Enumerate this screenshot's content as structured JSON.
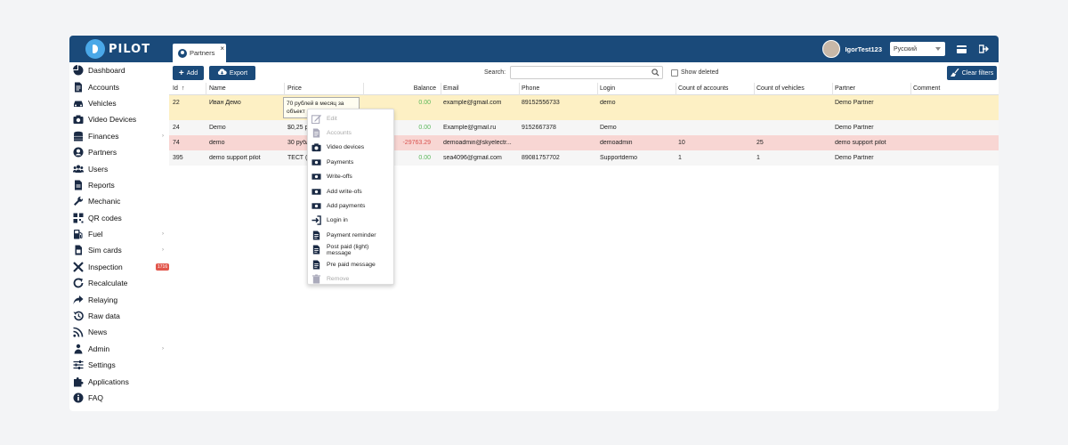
{
  "header": {
    "logo_text": "PILOT",
    "tab_label": "Partners",
    "tab_close": "×",
    "username": "IgorTest123",
    "language": "Русский"
  },
  "sidebar": {
    "items": [
      {
        "label": "Dashboard",
        "icon": "pie-chart-icon",
        "arrow": ""
      },
      {
        "label": "Accounts",
        "icon": "document-icon",
        "arrow": ""
      },
      {
        "label": "Vehicles",
        "icon": "car-icon",
        "arrow": ""
      },
      {
        "label": "Video Devices",
        "icon": "camera-icon",
        "arrow": ""
      },
      {
        "label": "Finances",
        "icon": "coins-icon",
        "arrow": "›"
      },
      {
        "label": "Partners",
        "icon": "user-circle-icon",
        "arrow": ""
      },
      {
        "label": "Users",
        "icon": "users-icon",
        "arrow": ""
      },
      {
        "label": "Reports",
        "icon": "report-icon",
        "arrow": ""
      },
      {
        "label": "Mechanic",
        "icon": "wrench-icon",
        "arrow": ""
      },
      {
        "label": "QR codes",
        "icon": "qr-icon",
        "arrow": ""
      },
      {
        "label": "Fuel",
        "icon": "fuel-icon",
        "arrow": "›"
      },
      {
        "label": "Sim cards",
        "icon": "sim-icon",
        "arrow": "›"
      },
      {
        "label": "Inspection",
        "icon": "tools-icon",
        "arrow": "",
        "badge": "1716"
      },
      {
        "label": "Recalculate",
        "icon": "refresh-icon",
        "arrow": ""
      },
      {
        "label": "Relaying",
        "icon": "share-icon",
        "arrow": ""
      },
      {
        "label": "Raw data",
        "icon": "history-icon",
        "arrow": ""
      },
      {
        "label": "News",
        "icon": "rss-icon",
        "arrow": ""
      },
      {
        "label": "Admin",
        "icon": "admin-icon",
        "arrow": "›"
      },
      {
        "label": "Settings",
        "icon": "sliders-icon",
        "arrow": ""
      },
      {
        "label": "Applications",
        "icon": "puzzle-icon",
        "arrow": ""
      },
      {
        "label": "FAQ",
        "icon": "info-icon",
        "arrow": ""
      }
    ]
  },
  "toolbar": {
    "add_label": "Add",
    "export_label": "Export",
    "search_label": "Search:",
    "search_value": "",
    "show_deleted_label": "Show deleted",
    "clear_filters_label": "Clear filters"
  },
  "table": {
    "columns": [
      "Id",
      "Name",
      "Price",
      "Balance",
      "Email",
      "Phone",
      "Login",
      "Count of accounts",
      "Count of vehicles",
      "Partner",
      "Comment"
    ],
    "sort_indicator": "↑",
    "rows": [
      {
        "id": "22",
        "name": "Иван Демо",
        "price": "70 рублей в месяц за объект",
        "balance": "0.00",
        "email": "example@gmail.com",
        "phone": "89152556733",
        "login": "demo",
        "accounts": "",
        "vehicles": "",
        "partner": "Demo Partner",
        "comment": "",
        "bg": "#fdf0c4",
        "balance_color": "green"
      },
      {
        "id": "24",
        "name": "Demo",
        "price": "$0,25 p",
        "balance": "0.00",
        "email": "Example@gmail.ru",
        "phone": "9152667378",
        "login": "Demo",
        "accounts": "",
        "vehicles": "",
        "partner": "Demo Partner",
        "comment": "",
        "bg": "#f6f6f6",
        "balance_color": "green"
      },
      {
        "id": "74",
        "name": "demo",
        "price": "30 рубл",
        "balance": "-29763.29",
        "email": "demoadmin@skyelectr...",
        "phone": "",
        "login": "demoadmin",
        "accounts": "10",
        "vehicles": "25",
        "partner": "demo support pilot",
        "comment": "",
        "bg": "#f8d6d3",
        "balance_color": "red"
      },
      {
        "id": "395",
        "name": "demo support pilot",
        "price": "ТЕСТ (",
        "balance": "0.00",
        "email": "sea4096@gmail.com",
        "phone": "89081757702",
        "login": "Supportdemo",
        "accounts": "1",
        "vehicles": "1",
        "partner": "Demo Partner",
        "comment": "",
        "bg": "#f6f6f6",
        "balance_color": "green"
      }
    ]
  },
  "context_menu": {
    "items": [
      {
        "label": "Edit",
        "icon": "edit-icon",
        "disabled": true
      },
      {
        "label": "Accounts",
        "icon": "document-icon",
        "disabled": true
      },
      {
        "label": "Video devices",
        "icon": "camera-icon",
        "disabled": false
      },
      {
        "label": "Payments",
        "icon": "money-icon",
        "disabled": false
      },
      {
        "label": "Write-offs",
        "icon": "money-icon",
        "disabled": false
      },
      {
        "label": "Add write-ofs",
        "icon": "money-icon",
        "disabled": false
      },
      {
        "label": "Add payments",
        "icon": "money-icon",
        "disabled": false
      },
      {
        "label": "Login in",
        "icon": "login-icon",
        "disabled": false
      },
      {
        "label": "Payment reminder",
        "icon": "document-icon",
        "disabled": false
      },
      {
        "label": "Post paid (light) message",
        "icon": "document-icon",
        "disabled": false
      },
      {
        "label": "Pre paid message",
        "icon": "document-icon",
        "disabled": false
      },
      {
        "label": "Remove",
        "icon": "trash-icon",
        "disabled": true
      }
    ]
  },
  "colors": {
    "brand": "#1a4a7a",
    "positive": "#5cb85c",
    "negative": "#d9534f",
    "highlight_row": "#fdf0c4",
    "error_row": "#f8d6d3"
  }
}
